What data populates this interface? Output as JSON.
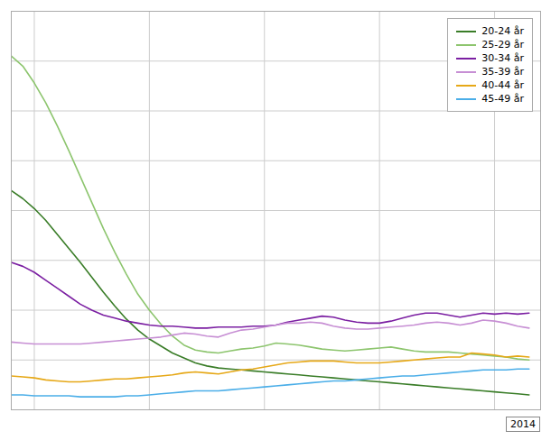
{
  "chart_data": {
    "type": "line",
    "title": "",
    "annotations": [
      "2014"
    ],
    "x": [
      1968,
      1969,
      1970,
      1971,
      1972,
      1973,
      1974,
      1975,
      1976,
      1977,
      1978,
      1979,
      1980,
      1981,
      1982,
      1983,
      1984,
      1985,
      1986,
      1987,
      1988,
      1989,
      1990,
      1991,
      1992,
      1993,
      1994,
      1995,
      1996,
      1997,
      1998,
      1999,
      2000,
      2001,
      2002,
      2003,
      2004,
      2005,
      2006,
      2007,
      2008,
      2009,
      2010,
      2011,
      2012,
      2013
    ],
    "series": [
      {
        "name": "20-24 år",
        "color": "#3a7d28",
        "values": [
          220,
          212,
          202,
          190,
          176,
          162,
          148,
          133,
          118,
          104,
          91,
          80,
          71,
          64,
          57,
          52,
          47,
          44,
          42,
          41,
          40,
          39,
          38,
          37,
          36,
          35,
          34,
          33,
          32,
          31,
          30,
          29,
          28,
          27,
          26,
          25,
          24,
          23,
          22,
          21,
          20,
          19,
          18,
          17,
          16,
          15
        ]
      },
      {
        "name": "25-29 år",
        "color": "#8dc56e",
        "values": [
          355,
          345,
          328,
          308,
          285,
          260,
          234,
          208,
          182,
          158,
          136,
          116,
          100,
          86,
          74,
          65,
          60,
          58,
          57,
          59,
          61,
          62,
          64,
          67,
          66,
          65,
          63,
          61,
          60,
          59,
          60,
          61,
          62,
          63,
          61,
          59,
          58,
          58,
          58,
          57,
          56,
          55,
          54,
          53,
          51,
          50
        ]
      },
      {
        "name": "30-34 år",
        "color": "#7b1fa2",
        "values": [
          148,
          144,
          138,
          130,
          122,
          114,
          106,
          100,
          95,
          92,
          89,
          87,
          85,
          84,
          84,
          83,
          82,
          82,
          83,
          83,
          83,
          84,
          84,
          85,
          88,
          90,
          92,
          94,
          93,
          90,
          88,
          87,
          87,
          89,
          92,
          95,
          97,
          97,
          95,
          93,
          95,
          97,
          96,
          97,
          96,
          97
        ]
      },
      {
        "name": "35-39 år",
        "color": "#c78fd4",
        "values": [
          68,
          67,
          66,
          66,
          66,
          66,
          66,
          67,
          68,
          69,
          70,
          71,
          72,
          73,
          75,
          77,
          76,
          74,
          73,
          77,
          80,
          81,
          83,
          85,
          87,
          87,
          88,
          87,
          84,
          82,
          81,
          81,
          82,
          83,
          84,
          85,
          87,
          88,
          87,
          85,
          87,
          90,
          89,
          87,
          84,
          82
        ]
      },
      {
        "name": "40-44 år",
        "color": "#e6a817",
        "values": [
          34,
          33,
          32,
          30,
          29,
          28,
          28,
          29,
          30,
          31,
          31,
          32,
          33,
          34,
          35,
          37,
          38,
          37,
          36,
          38,
          40,
          41,
          43,
          45,
          47,
          48,
          49,
          49,
          49,
          48,
          47,
          47,
          47,
          48,
          49,
          50,
          51,
          52,
          53,
          53,
          57,
          56,
          55,
          53,
          54,
          53
        ]
      },
      {
        "name": "45-49 år",
        "color": "#4baee8",
        "values": [
          15,
          15,
          14,
          14,
          14,
          14,
          13,
          13,
          13,
          13,
          14,
          14,
          15,
          16,
          17,
          18,
          19,
          19,
          19,
          20,
          21,
          22,
          23,
          24,
          25,
          26,
          27,
          28,
          29,
          29,
          30,
          31,
          32,
          33,
          34,
          34,
          35,
          36,
          37,
          38,
          39,
          40,
          40,
          40,
          41,
          41
        ]
      }
    ],
    "xlim": [
      1968,
      2014
    ],
    "xticks": [
      1970,
      1980,
      1990,
      2000,
      2010
    ],
    "ylim": [
      0,
      400
    ],
    "yticks": [
      0,
      50,
      100,
      150,
      200,
      250,
      300,
      350,
      400
    ],
    "grid": true,
    "legend": "upper right",
    "tick_labels": false
  }
}
